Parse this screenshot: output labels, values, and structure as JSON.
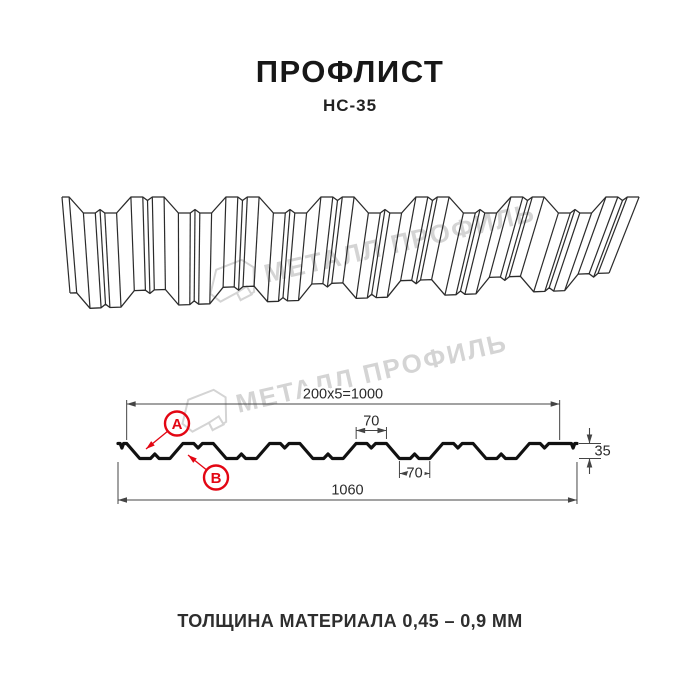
{
  "header": {
    "title": "ПРОФЛИСТ",
    "subtitle": "НС-35"
  },
  "watermark": {
    "brand": "МЕТАЛЛ ПРОФИЛЬ"
  },
  "drawing": {
    "dimensions": {
      "coverage_width": "200x5=1000",
      "crest_width": "70",
      "trough_width": "70",
      "overall_width": "1060",
      "profile_height": "35"
    },
    "markers": {
      "a": "А",
      "b": "В"
    }
  },
  "footer": {
    "note": "ТОЛЩИНА МАТЕРИАЛА 0,45 – 0,9 ММ"
  },
  "colors": {
    "accent_red": "#e30613",
    "line": "#2b2b2b",
    "dim_line": "#444444",
    "watermark_gray": "#d4d4d4"
  }
}
